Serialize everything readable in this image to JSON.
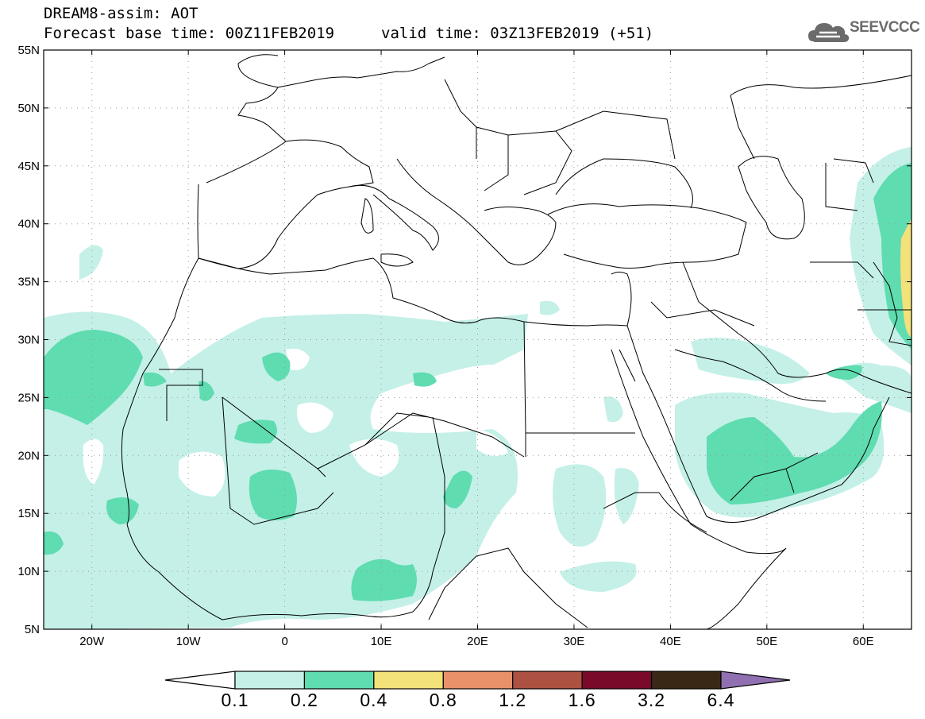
{
  "header": {
    "line1": "DREAM8-assim: AOT",
    "line2": "Forecast base time: 00Z11FEB2019",
    "valid_time": "valid time: 03Z13FEB2019 (+51)"
  },
  "logo": {
    "text": "SEEVCCC",
    "icon": "cloud-logo-icon"
  },
  "map": {
    "lat_labels": [
      "55N",
      "50N",
      "45N",
      "40N",
      "35N",
      "30N",
      "25N",
      "20N",
      "15N",
      "10N",
      "5N"
    ],
    "lon_labels": [
      "20W",
      "10W",
      "0",
      "10E",
      "20E",
      "30E",
      "40E",
      "50E",
      "60E"
    ],
    "lon_range": [
      -25,
      65
    ],
    "lat_range": [
      5,
      55
    ],
    "grid": "dotted"
  },
  "colorbar": {
    "labels": [
      "0.1",
      "0.2",
      "0.4",
      "0.8",
      "1.2",
      "1.6",
      "3.2",
      "6.4"
    ],
    "colors": [
      "#c4f0e8",
      "#5fdcb0",
      "#f3e27a",
      "#e9926a",
      "#ad5143",
      "#7a0a2a",
      "#3a2816",
      "#9070b0"
    ]
  }
}
